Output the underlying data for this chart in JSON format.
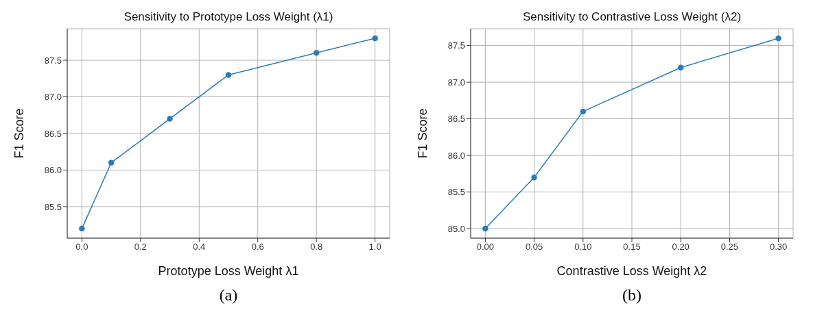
{
  "chart_data": [
    {
      "type": "line",
      "title": "Sensitivity to Prototype Loss Weight (λ1)",
      "xlabel": "Prototype Loss Weight λ1",
      "ylabel": "F1 Score",
      "annotations": [
        "(a)"
      ],
      "x": [
        0,
        0.1,
        0.3,
        0.5,
        0.8,
        1.0
      ],
      "series": [
        {
          "color": "#2b7bba",
          "values": [
            85.2,
            86.1,
            86.7,
            87.3,
            87.6,
            87.8
          ]
        }
      ],
      "xlim": [
        -0.05,
        1.05
      ],
      "xticks": [
        {
          "value": 0,
          "label": "0.0"
        },
        {
          "value": 0.2,
          "label": "0.2"
        },
        {
          "value": 0.4,
          "label": "0.4"
        },
        {
          "value": 0.6,
          "label": "0.6"
        },
        {
          "value": 0.8,
          "label": "0.8"
        },
        {
          "value": 1,
          "label": "1.0"
        }
      ],
      "ylim": [
        85.07,
        87.93
      ],
      "yticks": [
        {
          "value": 85.5,
          "label": "85.5"
        },
        {
          "value": 86,
          "label": "86.0"
        },
        {
          "value": 86.5,
          "label": "86.5"
        },
        {
          "value": 87,
          "label": "87.0"
        },
        {
          "value": 87.5,
          "label": "87.5"
        }
      ],
      "grid": true,
      "marker": "circle",
      "line_style": "solid"
    },
    {
      "type": "line",
      "title": "Sensitivity to Contrastive Loss Weight (λ2)",
      "xlabel": "Contrastive Loss Weight λ2",
      "ylabel": "F1 Score",
      "annotations": [
        "(b)"
      ],
      "x": [
        0,
        0.05,
        0.1,
        0.2,
        0.3
      ],
      "series": [
        {
          "color": "#2b7bba",
          "values": [
            85.0,
            85.7,
            86.6,
            87.2,
            87.6
          ]
        }
      ],
      "xlim": [
        -0.015,
        0.315
      ],
      "xticks": [
        {
          "value": 0,
          "label": "0.00"
        },
        {
          "value": 0.05,
          "label": "0.05"
        },
        {
          "value": 0.1,
          "label": "0.10"
        },
        {
          "value": 0.15,
          "label": "0.15"
        },
        {
          "value": 0.2,
          "label": "0.20"
        },
        {
          "value": 0.25,
          "label": "0.25"
        },
        {
          "value": 0.3,
          "label": "0.30"
        }
      ],
      "ylim": [
        84.87,
        87.73
      ],
      "yticks": [
        {
          "value": 85,
          "label": "85.0"
        },
        {
          "value": 85.5,
          "label": "85.5"
        },
        {
          "value": 86,
          "label": "86.0"
        },
        {
          "value": 86.5,
          "label": "86.5"
        },
        {
          "value": 87,
          "label": "87.0"
        },
        {
          "value": 87.5,
          "label": "87.5"
        }
      ],
      "grid": true,
      "marker": "circle",
      "line_style": "solid"
    }
  ]
}
